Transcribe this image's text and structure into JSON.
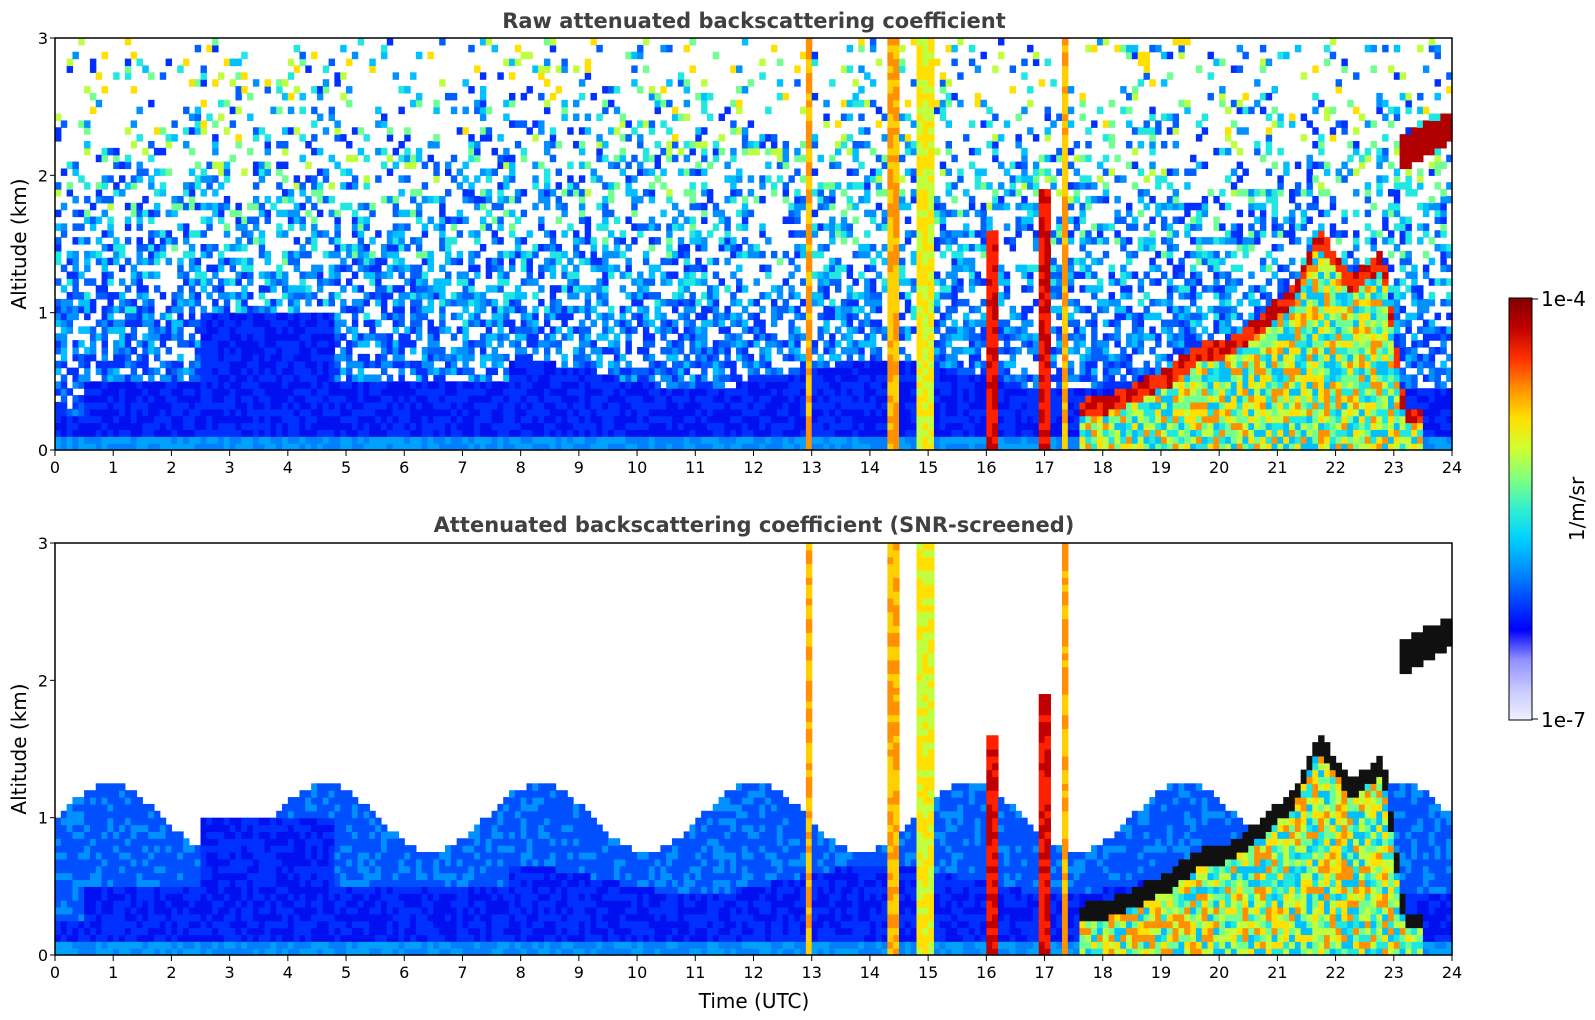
{
  "chart_data": [
    {
      "type": "heatmap",
      "title": "Raw attenuated backscattering coefficient",
      "xlabel": "",
      "ylabel": "Altitude (km)",
      "xlim": [
        0,
        24
      ],
      "ylim": [
        0,
        3
      ],
      "x_ticks": [
        "0",
        "1",
        "2",
        "3",
        "4",
        "5",
        "6",
        "7",
        "8",
        "9",
        "10",
        "11",
        "12",
        "13",
        "14",
        "15",
        "16",
        "17",
        "18",
        "19",
        "20",
        "21",
        "22",
        "23",
        "24"
      ],
      "y_ticks": [
        "0",
        "1",
        "2",
        "3"
      ],
      "screened": false,
      "features": {
        "boundary_layer": [
          {
            "t_start": 0.5,
            "t_end": 7.8,
            "top_km": 0.5
          },
          {
            "t_start": 2.5,
            "t_end": 4.8,
            "top_km": 1.0
          }
        ],
        "vertical_plumes": [
          {
            "t": 12.95,
            "width_h": 0.14,
            "top_km": 3.0,
            "level": "orange"
          },
          {
            "t": 14.4,
            "width_h": 0.15,
            "top_km": 3.0,
            "level": "orange"
          },
          {
            "t": 14.95,
            "width_h": 0.22,
            "top_km": 3.0,
            "level": "yellow"
          },
          {
            "t": 16.1,
            "width_h": 0.22,
            "top_km": 1.6,
            "level": "red"
          },
          {
            "t": 17.0,
            "width_h": 0.16,
            "top_km": 1.9,
            "level": "red"
          },
          {
            "t": 17.35,
            "width_h": 0.14,
            "top_km": 3.0,
            "level": "orange"
          }
        ],
        "cloud_line_km": [
          {
            "t": 17.6,
            "alt": 0.3
          },
          {
            "t": 18.2,
            "alt": 0.35
          },
          {
            "t": 18.7,
            "alt": 0.45
          },
          {
            "t": 19.2,
            "alt": 0.55
          },
          {
            "t": 19.6,
            "alt": 0.7
          },
          {
            "t": 20.2,
            "alt": 0.75
          },
          {
            "t": 20.8,
            "alt": 0.95
          },
          {
            "t": 21.3,
            "alt": 1.15
          },
          {
            "t": 21.7,
            "alt": 1.55
          },
          {
            "t": 22.3,
            "alt": 1.2
          },
          {
            "t": 22.8,
            "alt": 1.4
          },
          {
            "t": 23.2,
            "alt": 0.25
          },
          {
            "t": 23.5,
            "alt": 0.25
          }
        ],
        "elevated_layer": {
          "t_start": 23.1,
          "t_end": 23.95,
          "alt_start": 2.15,
          "alt_end": 2.35
        }
      }
    },
    {
      "type": "heatmap",
      "title": "Attenuated backscattering coefficient (SNR-screened)",
      "xlabel": "Time (UTC)",
      "ylabel": "Altitude (km)",
      "xlim": [
        0,
        24
      ],
      "ylim": [
        0,
        3
      ],
      "x_ticks": [
        "0",
        "1",
        "2",
        "3",
        "4",
        "5",
        "6",
        "7",
        "8",
        "9",
        "10",
        "11",
        "12",
        "13",
        "14",
        "15",
        "16",
        "17",
        "18",
        "19",
        "20",
        "21",
        "22",
        "23",
        "24"
      ],
      "y_ticks": [
        "0",
        "1",
        "2",
        "3"
      ],
      "screened": true,
      "screen_top_km": 1.1
    }
  ],
  "colorbar": {
    "label": "1/m/sr",
    "max_label": "1e-4",
    "min_label": "1e-7",
    "scale": "log",
    "colors": [
      "#f0f0ff",
      "#c8c8ff",
      "#9090ff",
      "#0000ff",
      "#0048ff",
      "#0090ff",
      "#00d0ff",
      "#30f0d0",
      "#80ff80",
      "#d0ff30",
      "#ffe000",
      "#ff9000",
      "#ff3000",
      "#c00000",
      "#800000"
    ]
  }
}
